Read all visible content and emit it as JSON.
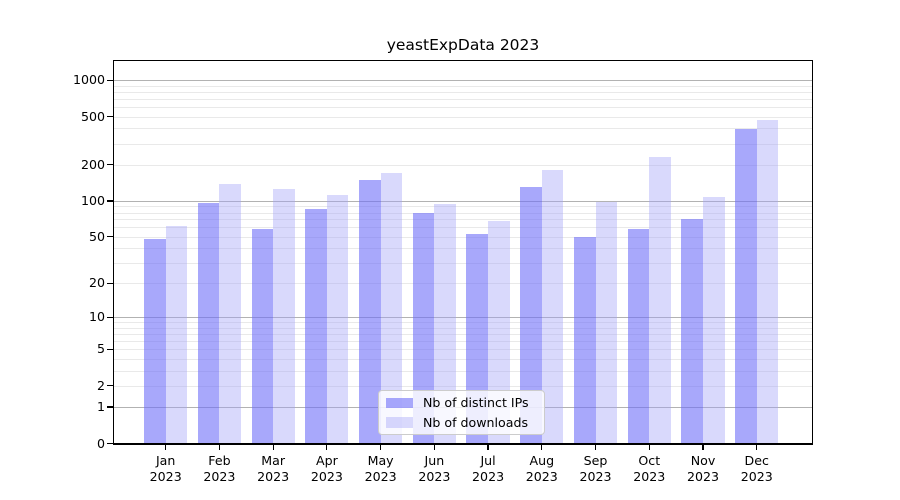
{
  "figure": {
    "title": "yeastExpData 2023",
    "background": "#ffffff"
  },
  "chart_data": {
    "type": "bar",
    "title": "yeastExpData 2023",
    "categories": [
      "Jan",
      "Feb",
      "Mar",
      "Apr",
      "May",
      "Jun",
      "Jul",
      "Aug",
      "Sep",
      "Oct",
      "Nov",
      "Dec"
    ],
    "category_year": "2023",
    "series": [
      {
        "name": "Nb of distinct IPs",
        "color": "rgba(110,110,248,0.6)",
        "color_hex_on_white": "#a8a8fb",
        "values": [
          48,
          97,
          58,
          85,
          150,
          80,
          53,
          131,
          50,
          58,
          70,
          394
        ]
      },
      {
        "name": "Nb of downloads",
        "color": "rgba(160,160,248,0.4)",
        "color_hex_on_white": "#d9d9fc",
        "values": [
          62,
          138,
          125,
          112,
          172,
          95,
          68,
          182,
          98,
          233,
          107,
          473
        ]
      }
    ],
    "yscale": "log10(1+v)",
    "y_tick_values": [
      1000,
      500,
      200,
      100,
      50,
      20,
      10,
      5,
      2,
      1,
      0
    ],
    "y_major_grid_values": [
      1,
      10,
      100,
      1000
    ],
    "y_minor_grid_values": [
      2,
      3,
      4,
      5,
      6,
      7,
      8,
      9,
      20,
      30,
      40,
      50,
      60,
      70,
      80,
      90,
      200,
      300,
      400,
      500,
      600,
      700,
      800,
      900
    ],
    "ylim": [
      0,
      1380
    ],
    "xlabel": "",
    "ylabel": "",
    "grid": "horizontal",
    "legend_position": "lower center",
    "legend_entries": [
      "Nb of distinct IPs",
      "Nb of downloads"
    ]
  },
  "colors": {
    "major_gridline": "#b2b2b2",
    "minor_gridline": "#e9e9e9",
    "spine": "#000000",
    "text": "#000000",
    "legend_background": "rgba(255,255,255,0.8)",
    "legend_border": "#cccccc"
  }
}
